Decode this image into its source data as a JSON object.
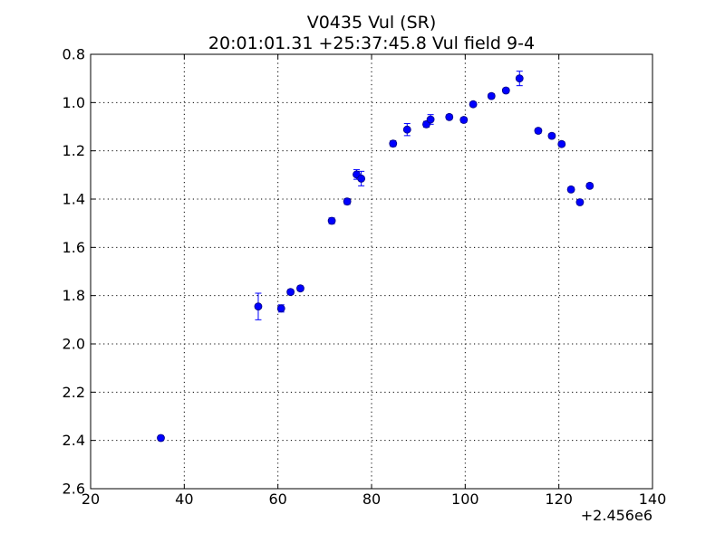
{
  "chart_data": {
    "type": "scatter",
    "title": "V0435 Vul (SR)",
    "subtitle": "20:01:01.31 +25:37:45.8 Vul field 9-4",
    "xlabel": "",
    "ylabel": "",
    "x_offset_label": "+2.456e6",
    "xlim": [
      20,
      140
    ],
    "ylim": [
      0.8,
      2.6
    ],
    "y_inverted": true,
    "grid": true,
    "x_ticks": [
      20,
      40,
      60,
      80,
      100,
      120,
      140
    ],
    "x_tick_labels": [
      "20",
      "40",
      "60",
      "80",
      "100",
      "120",
      "140"
    ],
    "y_ticks": [
      0.8,
      1.0,
      1.2,
      1.4,
      1.6,
      1.8,
      2.0,
      2.2,
      2.4,
      2.6
    ],
    "y_tick_labels": [
      "0.8",
      "1.0",
      "1.2",
      "1.4",
      "1.6",
      "1.8",
      "2.0",
      "2.2",
      "2.4",
      "2.6"
    ],
    "marker_color": "#0000ff",
    "marker_edge_color": "#000080",
    "error_color": "#0000ff",
    "points": [
      {
        "x": 35.0,
        "y": 2.39,
        "err": 0.01
      },
      {
        "x": 55.8,
        "y": 1.845,
        "err": 0.055
      },
      {
        "x": 60.7,
        "y": 1.853,
        "err": 0.015
      },
      {
        "x": 62.7,
        "y": 1.785,
        "err": 0.01
      },
      {
        "x": 64.8,
        "y": 1.77,
        "err": 0.01
      },
      {
        "x": 71.5,
        "y": 1.49,
        "err": 0.012
      },
      {
        "x": 74.8,
        "y": 1.41,
        "err": 0.012
      },
      {
        "x": 76.8,
        "y": 1.298,
        "err": 0.02
      },
      {
        "x": 77.8,
        "y": 1.315,
        "err": 0.03
      },
      {
        "x": 84.6,
        "y": 1.17,
        "err": 0.012
      },
      {
        "x": 87.6,
        "y": 1.112,
        "err": 0.025
      },
      {
        "x": 91.7,
        "y": 1.09,
        "err": 0.012
      },
      {
        "x": 92.6,
        "y": 1.07,
        "err": 0.02
      },
      {
        "x": 96.6,
        "y": 1.06,
        "err": 0.01
      },
      {
        "x": 99.7,
        "y": 1.072,
        "err": 0.01
      },
      {
        "x": 101.7,
        "y": 1.007,
        "err": 0.01
      },
      {
        "x": 105.6,
        "y": 0.973,
        "err": 0.01
      },
      {
        "x": 108.7,
        "y": 0.95,
        "err": 0.01
      },
      {
        "x": 111.6,
        "y": 0.9,
        "err": 0.03
      },
      {
        "x": 115.6,
        "y": 1.117,
        "err": 0.01
      },
      {
        "x": 118.5,
        "y": 1.138,
        "err": 0.01
      },
      {
        "x": 120.6,
        "y": 1.172,
        "err": 0.01
      },
      {
        "x": 122.6,
        "y": 1.36,
        "err": 0.01
      },
      {
        "x": 124.5,
        "y": 1.413,
        "err": 0.01
      },
      {
        "x": 126.6,
        "y": 1.345,
        "err": 0.01
      }
    ]
  }
}
